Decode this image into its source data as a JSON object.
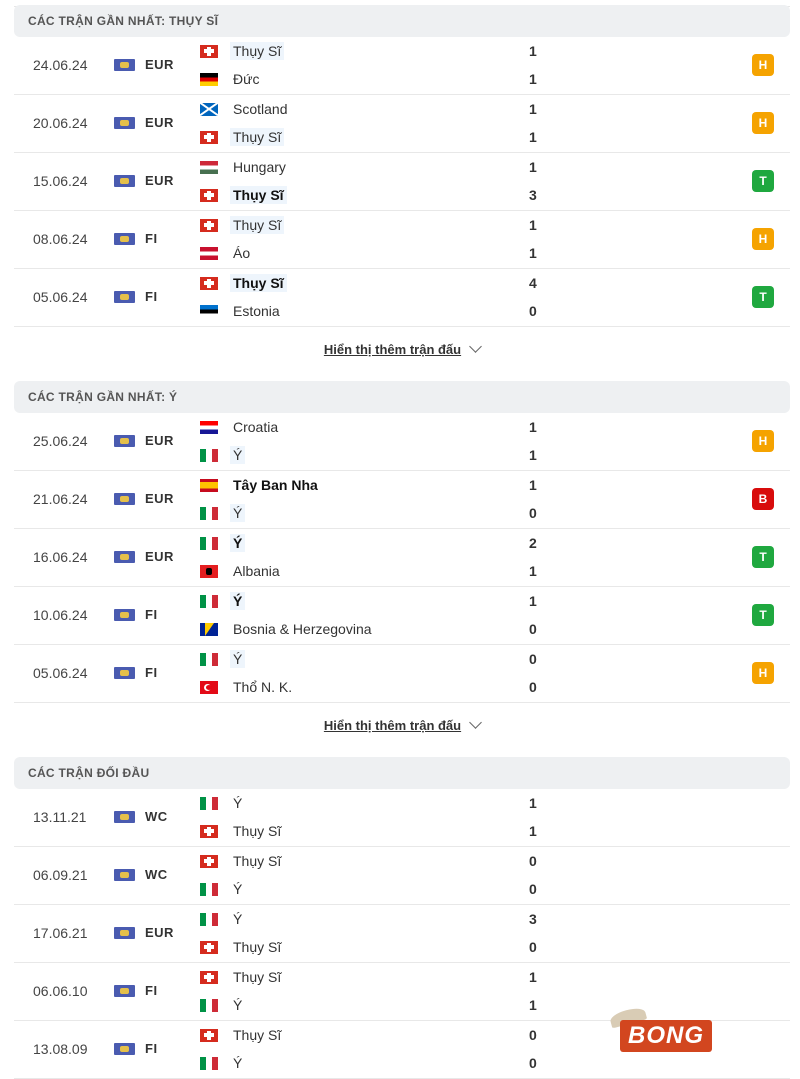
{
  "sections": [
    {
      "title": "CÁC TRẬN GẦN NHẤT: THỤY SĨ",
      "highlight": "Thụy Sĩ",
      "more_label": "Hiển thị thêm trận đấu",
      "matches": [
        {
          "date": "24.06.24",
          "comp": "EUR",
          "home": "Thụy Sĩ",
          "home_flag": "ch",
          "away": "Đức",
          "away_flag": "de",
          "home_score": "1",
          "away_score": "1",
          "result": "H"
        },
        {
          "date": "20.06.24",
          "comp": "EUR",
          "home": "Scotland",
          "home_flag": "sco",
          "away": "Thụy Sĩ",
          "away_flag": "ch",
          "home_score": "1",
          "away_score": "1",
          "result": "H"
        },
        {
          "date": "15.06.24",
          "comp": "EUR",
          "home": "Hungary",
          "home_flag": "hu",
          "away": "Thụy Sĩ",
          "away_flag": "ch",
          "home_score": "1",
          "away_score": "3",
          "result": "T"
        },
        {
          "date": "08.06.24",
          "comp": "FI",
          "home": "Thụy Sĩ",
          "home_flag": "ch",
          "away": "Áo",
          "away_flag": "at",
          "home_score": "1",
          "away_score": "1",
          "result": "H"
        },
        {
          "date": "05.06.24",
          "comp": "FI",
          "home": "Thụy Sĩ",
          "home_flag": "ch",
          "away": "Estonia",
          "away_flag": "ee",
          "home_score": "4",
          "away_score": "0",
          "result": "T"
        }
      ]
    },
    {
      "title": "CÁC TRẬN GẦN NHẤT: Ý",
      "highlight": "Ý",
      "more_label": "Hiển thị thêm trận đấu",
      "matches": [
        {
          "date": "25.06.24",
          "comp": "EUR",
          "home": "Croatia",
          "home_flag": "hr",
          "away": "Ý",
          "away_flag": "it",
          "home_score": "1",
          "away_score": "1",
          "result": "H"
        },
        {
          "date": "21.06.24",
          "comp": "EUR",
          "home": "Tây Ban Nha",
          "home_flag": "es",
          "away": "Ý",
          "away_flag": "it",
          "home_score": "1",
          "away_score": "0",
          "result": "B"
        },
        {
          "date": "16.06.24",
          "comp": "EUR",
          "home": "Ý",
          "home_flag": "it",
          "away": "Albania",
          "away_flag": "al",
          "home_score": "2",
          "away_score": "1",
          "result": "T"
        },
        {
          "date": "10.06.24",
          "comp": "FI",
          "home": "Ý",
          "home_flag": "it",
          "away": "Bosnia & Herzegovina",
          "away_flag": "ba",
          "home_score": "1",
          "away_score": "0",
          "result": "T"
        },
        {
          "date": "05.06.24",
          "comp": "FI",
          "home": "Ý",
          "home_flag": "it",
          "away": "Thổ N. K.",
          "away_flag": "tr",
          "home_score": "0",
          "away_score": "0",
          "result": "H"
        }
      ]
    },
    {
      "title": "CÁC TRẬN ĐỐI ĐẦU",
      "highlight": "",
      "matches": [
        {
          "date": "13.11.21",
          "comp": "WC",
          "home": "Ý",
          "home_flag": "it",
          "away": "Thụy Sĩ",
          "away_flag": "ch",
          "home_score": "1",
          "away_score": "1",
          "result": ""
        },
        {
          "date": "06.09.21",
          "comp": "WC",
          "home": "Thụy Sĩ",
          "home_flag": "ch",
          "away": "Ý",
          "away_flag": "it",
          "home_score": "0",
          "away_score": "0",
          "result": ""
        },
        {
          "date": "17.06.21",
          "comp": "EUR",
          "home": "Ý",
          "home_flag": "it",
          "away": "Thụy Sĩ",
          "away_flag": "ch",
          "home_score": "3",
          "away_score": "0",
          "result": ""
        },
        {
          "date": "06.06.10",
          "comp": "FI",
          "home": "Thụy Sĩ",
          "home_flag": "ch",
          "away": "Ý",
          "away_flag": "it",
          "home_score": "1",
          "away_score": "1",
          "result": ""
        },
        {
          "date": "13.08.09",
          "comp": "FI",
          "home": "Thụy Sĩ",
          "home_flag": "ch",
          "away": "Ý",
          "away_flag": "it",
          "home_score": "0",
          "away_score": "0",
          "result": ""
        }
      ]
    }
  ],
  "result_colors": {
    "H": "#f5a300",
    "T": "#1fa83f",
    "B": "#d80c0c"
  },
  "watermark": "BONG"
}
